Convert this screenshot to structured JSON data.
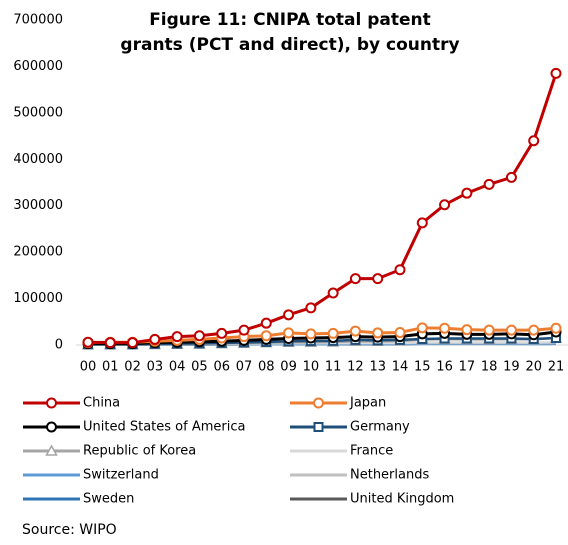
{
  "chart_data": {
    "type": "line",
    "title": "Figure 11: CNIPA total patent grants (PCT and direct), by country",
    "source": "Source: WIPO",
    "categories": [
      "00",
      "01",
      "02",
      "03",
      "04",
      "05",
      "06",
      "07",
      "08",
      "09",
      "10",
      "11",
      "12",
      "13",
      "14",
      "15",
      "16",
      "17",
      "18",
      "19",
      "20",
      "21"
    ],
    "ylim": [
      0,
      700000
    ],
    "yticks": [
      0,
      100000,
      200000,
      300000,
      400000,
      500000,
      600000,
      700000
    ],
    "grid": false,
    "legend": "bottom",
    "series": [
      {
        "name": "China",
        "color": "#c00000",
        "marker": "circle",
        "values": [
          6000,
          5000,
          5000,
          12000,
          18000,
          20000,
          25000,
          32000,
          47000,
          65000,
          80000,
          112000,
          143000,
          143000,
          162000,
          263000,
          302000,
          327000,
          346000,
          361000,
          440000,
          585000
        ]
      },
      {
        "name": "Japan",
        "color": "#ed7d31",
        "marker": "circle",
        "values": [
          5000,
          6000,
          6000,
          8000,
          10000,
          12000,
          15000,
          18000,
          20000,
          26000,
          24000,
          25000,
          30000,
          26000,
          27000,
          37000,
          36000,
          33000,
          32000,
          32000,
          32000,
          36000
        ]
      },
      {
        "name": "United States of America",
        "color": "#000000",
        "marker": "circle",
        "values": [
          3000,
          3000,
          3000,
          5000,
          6000,
          7000,
          8000,
          10000,
          12000,
          14000,
          15000,
          16000,
          18000,
          17000,
          18000,
          24000,
          25000,
          23000,
          23000,
          24000,
          22000,
          28000
        ]
      },
      {
        "name": "Germany",
        "color": "#1f4e79",
        "marker": "square",
        "values": [
          1500,
          1500,
          1500,
          2500,
          3000,
          3500,
          4500,
          5500,
          6500,
          8000,
          8500,
          9000,
          11000,
          10000,
          11000,
          13000,
          14000,
          14000,
          14000,
          14000,
          13000,
          15000
        ]
      },
      {
        "name": "Republic of Korea",
        "color": "#a5a5a5",
        "marker": "triangle",
        "values": [
          500,
          600,
          700,
          1000,
          1500,
          2000,
          3000,
          4000,
          5000,
          6000,
          6000,
          6500,
          8000,
          8000,
          8500,
          12000,
          12500,
          12000,
          12000,
          12500,
          12000,
          15000
        ]
      },
      {
        "name": "France",
        "color": "#d9d9d9",
        "values": [
          1000,
          1000,
          1000,
          1500,
          2000,
          2000,
          2500,
          3000,
          3500,
          4000,
          4000,
          4000,
          4500,
          4500,
          4500,
          5500,
          5500,
          5500,
          5500,
          5500,
          5000,
          6000
        ]
      },
      {
        "name": "Switzerland",
        "color": "#5b9bd5",
        "values": [
          800,
          800,
          800,
          1200,
          1500,
          1600,
          2000,
          2300,
          2600,
          3000,
          3000,
          3000,
          3300,
          3200,
          3300,
          4000,
          4100,
          4000,
          4000,
          4000,
          3800,
          4300
        ]
      },
      {
        "name": "Netherlands",
        "color": "#bfbfbf",
        "values": [
          700,
          700,
          700,
          1000,
          1200,
          1300,
          1600,
          1900,
          2100,
          2400,
          2400,
          2400,
          2700,
          2600,
          2700,
          3200,
          3300,
          3200,
          3200,
          3200,
          3000,
          3400
        ]
      },
      {
        "name": "Sweden",
        "color": "#2e75b6",
        "values": [
          500,
          500,
          500,
          700,
          800,
          900,
          1100,
          1300,
          1500,
          1700,
          1700,
          1700,
          1900,
          1800,
          1900,
          2300,
          2400,
          2300,
          2300,
          2300,
          2200,
          2500
        ]
      },
      {
        "name": "United Kingdom",
        "color": "#595959",
        "values": [
          600,
          600,
          600,
          800,
          1000,
          1100,
          1300,
          1500,
          1700,
          2000,
          2000,
          2000,
          2200,
          2100,
          2200,
          2700,
          2800,
          2700,
          2700,
          2700,
          2600,
          3000
        ]
      }
    ]
  }
}
